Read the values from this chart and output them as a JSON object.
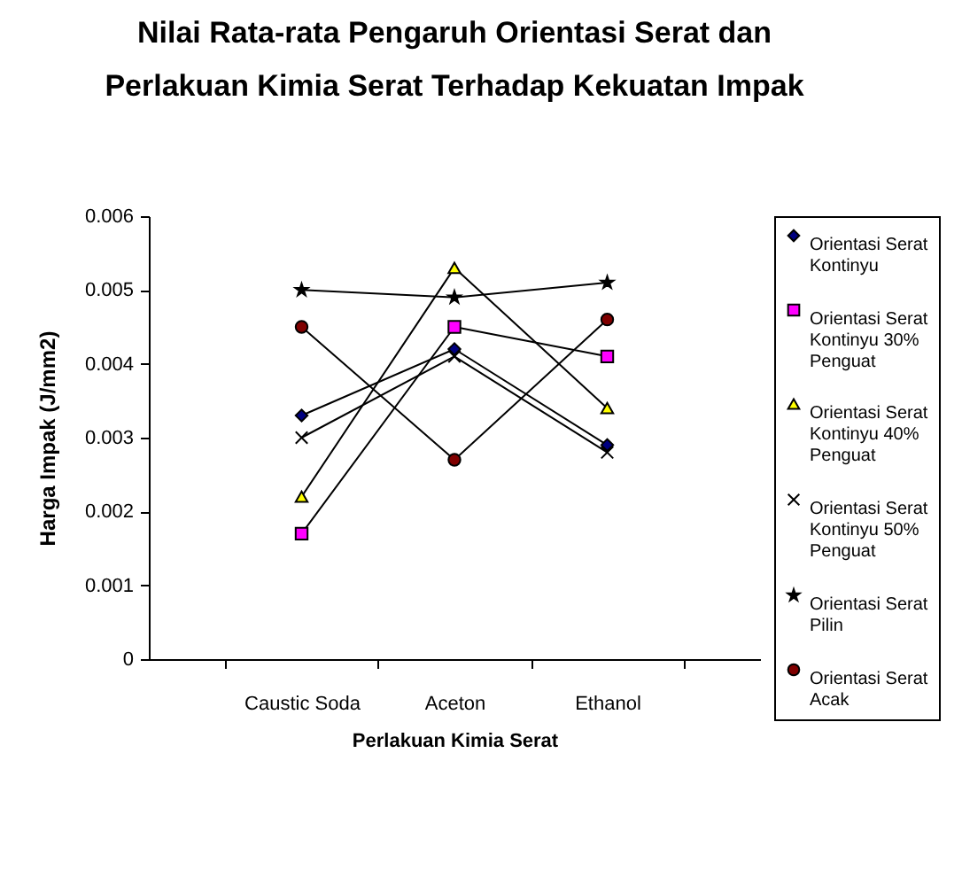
{
  "chart_data": {
    "type": "line",
    "title": "Nilai Rata-rata Pengaruh Orientasi Serat dan Perlakuan Kimia Serat Terhadap Kekuatan Impak",
    "xlabel": "Perlakuan Kimia Serat",
    "ylabel": "Harga Impak (J/mm2)",
    "categories": [
      "Caustic Soda",
      "Aceton",
      "Ethanol"
    ],
    "series": [
      {
        "name": "Orientasi Serat Kontinyu",
        "color": "#000080",
        "marker": "diamond",
        "values": [
          0.0033,
          0.0042,
          0.0029
        ]
      },
      {
        "name": "Orientasi Serat Kontinyu 30% Penguat",
        "color": "#ff00ff",
        "marker": "square",
        "values": [
          0.0017,
          0.0045,
          0.0041
        ]
      },
      {
        "name": "Orientasi Serat Kontinyu 40% Penguat",
        "color": "#ffff00",
        "marker": "triangle",
        "values": [
          0.0022,
          0.0053,
          0.0034
        ]
      },
      {
        "name": "Orientasi Serat Kontinyu 50% Penguat",
        "color": "#000000",
        "marker": "cross",
        "values": [
          0.003,
          0.0041,
          0.0028
        ]
      },
      {
        "name": "Orientasi Serat Pilin",
        "color": "#000000",
        "marker": "star",
        "values": [
          0.005,
          0.0049,
          0.0051
        ]
      },
      {
        "name": "Orientasi Serat Acak",
        "color": "#800000",
        "marker": "circle",
        "values": [
          0.0045,
          0.0027,
          0.0046
        ]
      }
    ],
    "ylim": [
      0,
      0.006
    ],
    "yticks": [
      0,
      0.001,
      0.002,
      0.003,
      0.004,
      0.005,
      0.006
    ],
    "grid": false,
    "legend": "right"
  }
}
